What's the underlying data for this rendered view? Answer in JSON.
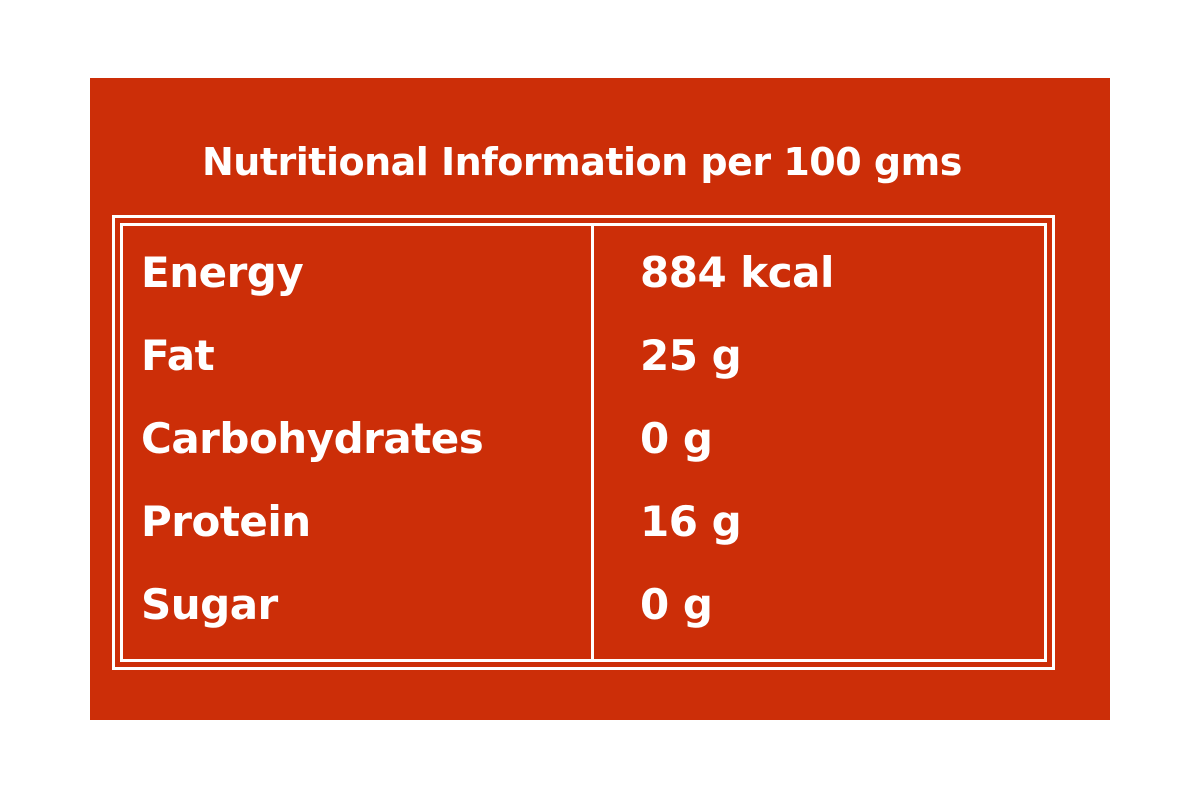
{
  "title": "Nutritional Information per 100 gms",
  "table": {
    "rows": [
      [
        "Energy",
        "884 kcal"
      ],
      [
        "Fat",
        "25 g"
      ],
      [
        "Carbohydrates",
        "0 g"
      ],
      [
        "Protein",
        "16 g"
      ],
      [
        "Sugar",
        "0 g"
      ]
    ]
  }
}
